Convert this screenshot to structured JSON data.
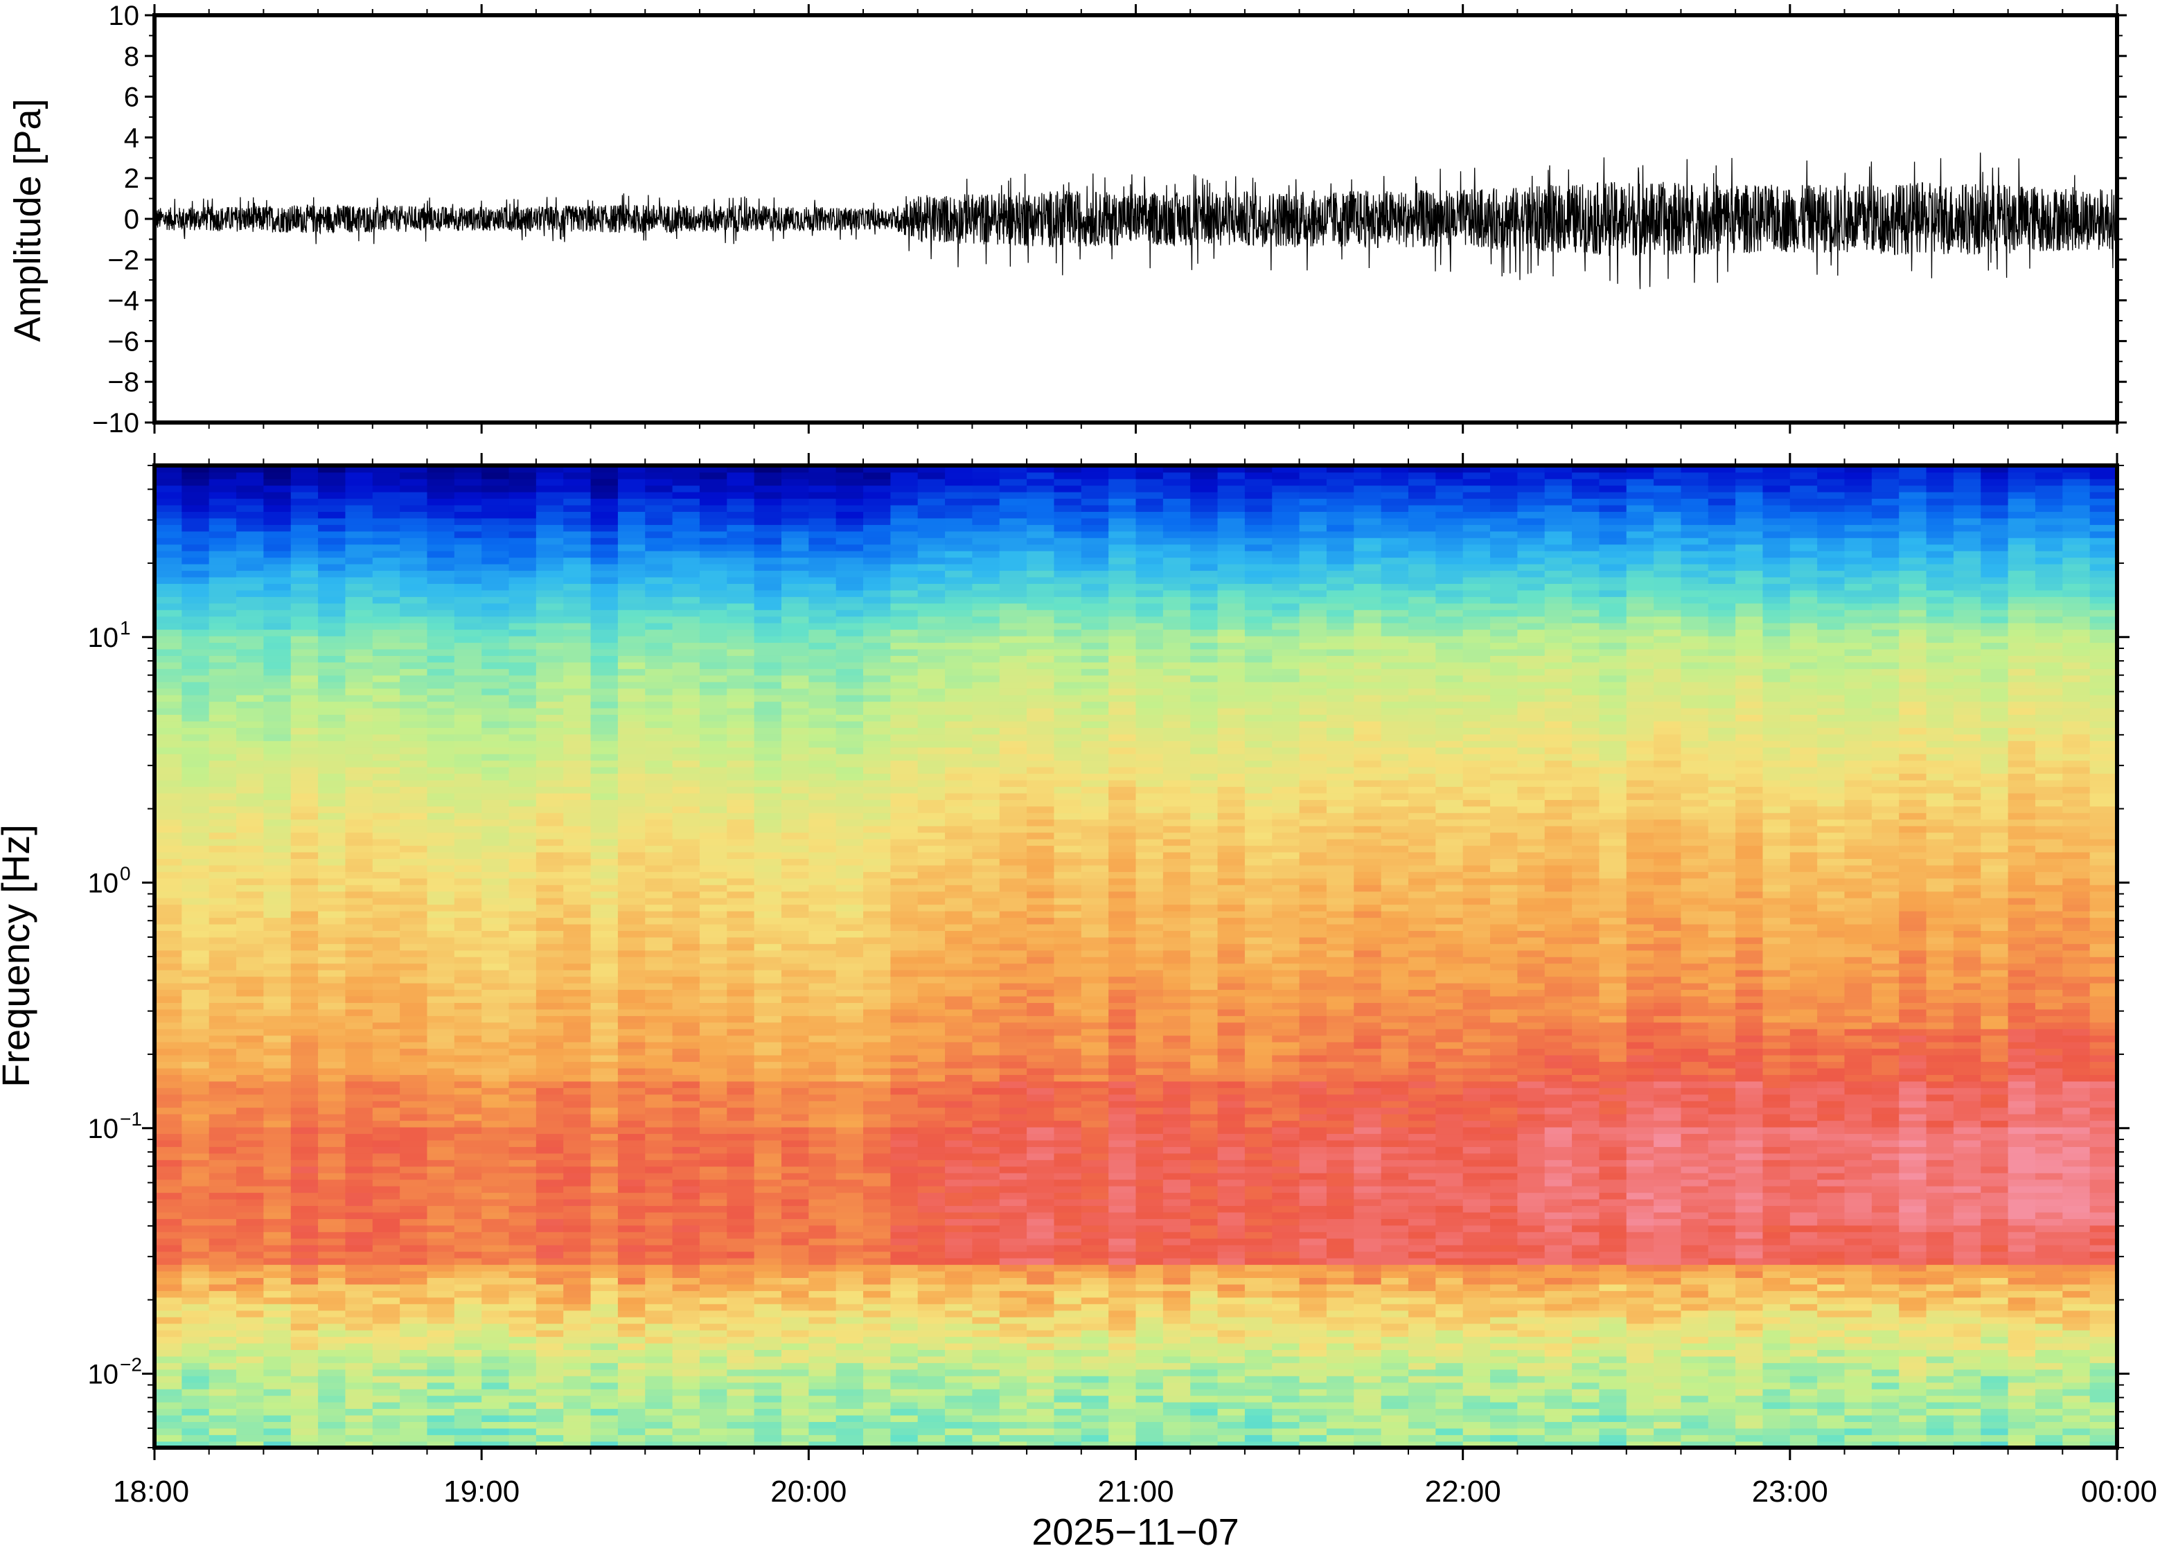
{
  "chart_data": [
    {
      "type": "line",
      "panel": "waveform",
      "ylabel": "Amplitude [Pa]",
      "ylim": [
        -10,
        10
      ],
      "yticks": [
        10,
        8,
        6,
        4,
        2,
        0,
        -2,
        -4,
        -6,
        -8,
        -10
      ],
      "ytick_labels": [
        "10",
        "8",
        "6",
        "4",
        "2",
        "0",
        "−2",
        "−4",
        "−6",
        "−8",
        "−10"
      ],
      "xlim": [
        "2025-11-07 18:00",
        "2025-11-08 00:00"
      ],
      "envelope": {
        "x": [
          "18:00",
          "18:30",
          "19:00",
          "19:30",
          "20:00",
          "20:15",
          "20:20",
          "20:45",
          "21:00",
          "21:30",
          "22:00",
          "22:30",
          "23:00",
          "23:30",
          "00:00"
        ],
        "max": [
          1.0,
          1.2,
          1.0,
          1.3,
          1.0,
          0.9,
          2.0,
          2.3,
          2.2,
          2.3,
          2.5,
          3.2,
          3.0,
          3.4,
          2.8
        ],
        "min": [
          -1.0,
          -1.4,
          -1.1,
          -1.3,
          -1.2,
          -0.9,
          -2.2,
          -2.8,
          -2.5,
          -2.8,
          -2.7,
          -3.6,
          -3.0,
          -3.2,
          -2.6
        ]
      },
      "line_color": "#000000"
    },
    {
      "type": "heatmap",
      "panel": "spectrogram",
      "ylabel": "Frequency [Hz]",
      "y_scale": "log",
      "ylim_hz": [
        0.005,
        50
      ],
      "yticks": [
        {
          "base": "10",
          "exp": "1"
        },
        {
          "base": "10",
          "exp": "0"
        },
        {
          "base": "10",
          "exp": "−1"
        },
        {
          "base": "10",
          "exp": "−2"
        }
      ],
      "xlabel": "2025−11−07",
      "xticks": [
        "18:00",
        "19:00",
        "20:00",
        "21:00",
        "22:00",
        "23:00",
        "00:00"
      ],
      "xlim": [
        "2025-11-07 18:00",
        "2025-11-08 00:00"
      ],
      "colormap": "jet",
      "time_columns": 72,
      "regime_change_time": "20:17",
      "colormap_stops": [
        "#00007a",
        "#0010d0",
        "#0a6ef0",
        "#2fb8f0",
        "#66e2c8",
        "#c4f08c",
        "#f6e07a",
        "#f7a64e",
        "#ee5a48",
        "#f590a0"
      ]
    }
  ]
}
